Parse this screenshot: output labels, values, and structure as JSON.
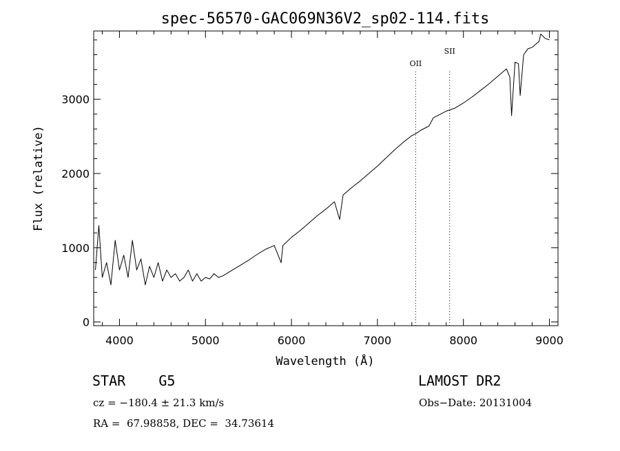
{
  "chart_data": {
    "type": "line",
    "title": "spec-56570-GAC069N36V2_sp02-114.fits",
    "xlabel": "Wavelength (Å)",
    "ylabel": "Flux (relative)",
    "xlim": [
      3700,
      9100
    ],
    "ylim": [
      -50,
      3920
    ],
    "xticks": [
      4000,
      5000,
      6000,
      7000,
      8000,
      9000
    ],
    "yticks": [
      0,
      1000,
      2000,
      3000
    ],
    "grid": false,
    "lines": [
      {
        "label": "OII",
        "x": 7445
      },
      {
        "label": "SII",
        "x": 7840
      }
    ],
    "series": [
      {
        "x": [
          3720,
          3760,
          3800,
          3850,
          3900,
          3950,
          4000,
          4050,
          4100,
          4150,
          4200,
          4250,
          4300,
          4350,
          4400,
          4450,
          4500,
          4550,
          4600,
          4650,
          4700,
          4750,
          4800,
          4850,
          4900,
          4950,
          5000,
          5050,
          5100,
          5150,
          5200,
          5300,
          5400,
          5500,
          5600,
          5700,
          5800,
          5880,
          5900,
          6000,
          6100,
          6200,
          6300,
          6400,
          6500,
          6560,
          6600,
          6700,
          6800,
          6900,
          7000,
          7100,
          7200,
          7300,
          7400,
          7450,
          7500,
          7600,
          7650,
          7700,
          7800,
          7900,
          8000,
          8100,
          8200,
          8300,
          8400,
          8450,
          8500,
          8540,
          8560,
          8600,
          8640,
          8660,
          8700,
          8750,
          8800,
          8850,
          8880,
          8900,
          8950,
          9000
        ],
        "y": [
          700,
          1300,
          600,
          800,
          500,
          1100,
          700,
          900,
          600,
          1100,
          700,
          850,
          500,
          750,
          600,
          800,
          550,
          700,
          600,
          650,
          550,
          600,
          700,
          550,
          650,
          550,
          600,
          580,
          650,
          600,
          620,
          690,
          760,
          830,
          910,
          980,
          1030,
          800,
          1030,
          1140,
          1230,
          1330,
          1430,
          1520,
          1620,
          1380,
          1710,
          1810,
          1900,
          2000,
          2100,
          2210,
          2320,
          2420,
          2510,
          2540,
          2580,
          2640,
          2750,
          2780,
          2840,
          2880,
          2950,
          3030,
          3120,
          3210,
          3310,
          3360,
          3410,
          3300,
          2780,
          3500,
          3480,
          3050,
          3600,
          3680,
          3700,
          3750,
          3780,
          3880,
          3820,
          3800
        ]
      }
    ]
  },
  "footer": {
    "object_type": "STAR    G5",
    "survey": "LAMOST DR2",
    "cz": "cz = −180.4 ± 21.3 km/s",
    "obs_date": "Obs−Date: 20131004",
    "coords": "RA =  67.98858, DEC =  34.73614"
  }
}
